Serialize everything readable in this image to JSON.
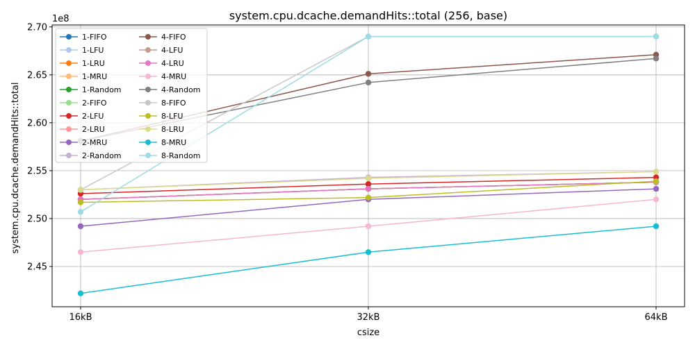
{
  "chart_data": {
    "type": "line",
    "title": "system.cpu.dcache.demandHits::total (256, base)",
    "xlabel": "csize",
    "ylabel": "system.cpu.dcache.demandHits::total",
    "y_multiplier_label": "1e8",
    "categories": [
      "16kB",
      "32kB",
      "64kB"
    ],
    "ylim": [
      2.408,
      2.702
    ],
    "yticks": [
      2.45,
      2.5,
      2.55,
      2.6,
      2.65,
      2.7
    ],
    "ytick_labels": [
      "2.45",
      "2.50",
      "2.55",
      "2.60",
      "2.65",
      "2.70"
    ],
    "grid": true,
    "legend_location": "upper-left",
    "legend_columns": 2,
    "series": [
      {
        "name": "1-FIFO",
        "color": "#1f77b4",
        "values": [
          2.52,
          2.531,
          2.538
        ]
      },
      {
        "name": "1-LFU",
        "color": "#aec7e8",
        "values": [
          2.52,
          2.531,
          2.538
        ]
      },
      {
        "name": "1-LRU",
        "color": "#ff7f0e",
        "values": [
          2.52,
          2.531,
          2.538
        ]
      },
      {
        "name": "1-MRU",
        "color": "#ffbb78",
        "values": [
          2.52,
          2.531,
          2.538
        ]
      },
      {
        "name": "1-Random",
        "color": "#2ca02c",
        "values": [
          2.52,
          2.531,
          2.538
        ]
      },
      {
        "name": "2-FIFO",
        "color": "#98df8a",
        "values": [
          2.52,
          2.531,
          2.538
        ]
      },
      {
        "name": "2-LFU",
        "color": "#d62728",
        "values": [
          2.526,
          2.536,
          2.543
        ]
      },
      {
        "name": "2-LRU",
        "color": "#ff9896",
        "values": [
          2.52,
          2.531,
          2.538
        ]
      },
      {
        "name": "2-MRU",
        "color": "#9467bd",
        "values": [
          2.492,
          2.52,
          2.531
        ]
      },
      {
        "name": "2-Random",
        "color": "#c5b0d5",
        "values": [
          2.53,
          2.543,
          2.549
        ]
      },
      {
        "name": "4-FIFO",
        "color": "#8c564b",
        "values": [
          2.581,
          2.651,
          2.671
        ]
      },
      {
        "name": "4-LFU",
        "color": "#c49c94",
        "values": [
          2.52,
          2.531,
          2.538
        ]
      },
      {
        "name": "4-LRU",
        "color": "#e377c2",
        "values": [
          2.52,
          2.531,
          2.538
        ]
      },
      {
        "name": "4-MRU",
        "color": "#f7b6d2",
        "values": [
          2.465,
          2.492,
          2.52
        ]
      },
      {
        "name": "4-Random",
        "color": "#7f7f7f",
        "values": [
          2.581,
          2.642,
          2.667
        ]
      },
      {
        "name": "8-FIFO",
        "color": "#c7c7c7",
        "values": [
          2.53,
          2.69,
          2.69
        ]
      },
      {
        "name": "8-LFU",
        "color": "#bcbd22",
        "values": [
          2.517,
          2.522,
          2.539
        ]
      },
      {
        "name": "8-LRU",
        "color": "#dbdb8d",
        "values": [
          2.53,
          2.542,
          2.549
        ]
      },
      {
        "name": "8-MRU",
        "color": "#17becf",
        "values": [
          2.422,
          2.465,
          2.492
        ]
      },
      {
        "name": "8-Random",
        "color": "#9edae5",
        "values": [
          2.507,
          2.69,
          2.69
        ]
      }
    ]
  }
}
